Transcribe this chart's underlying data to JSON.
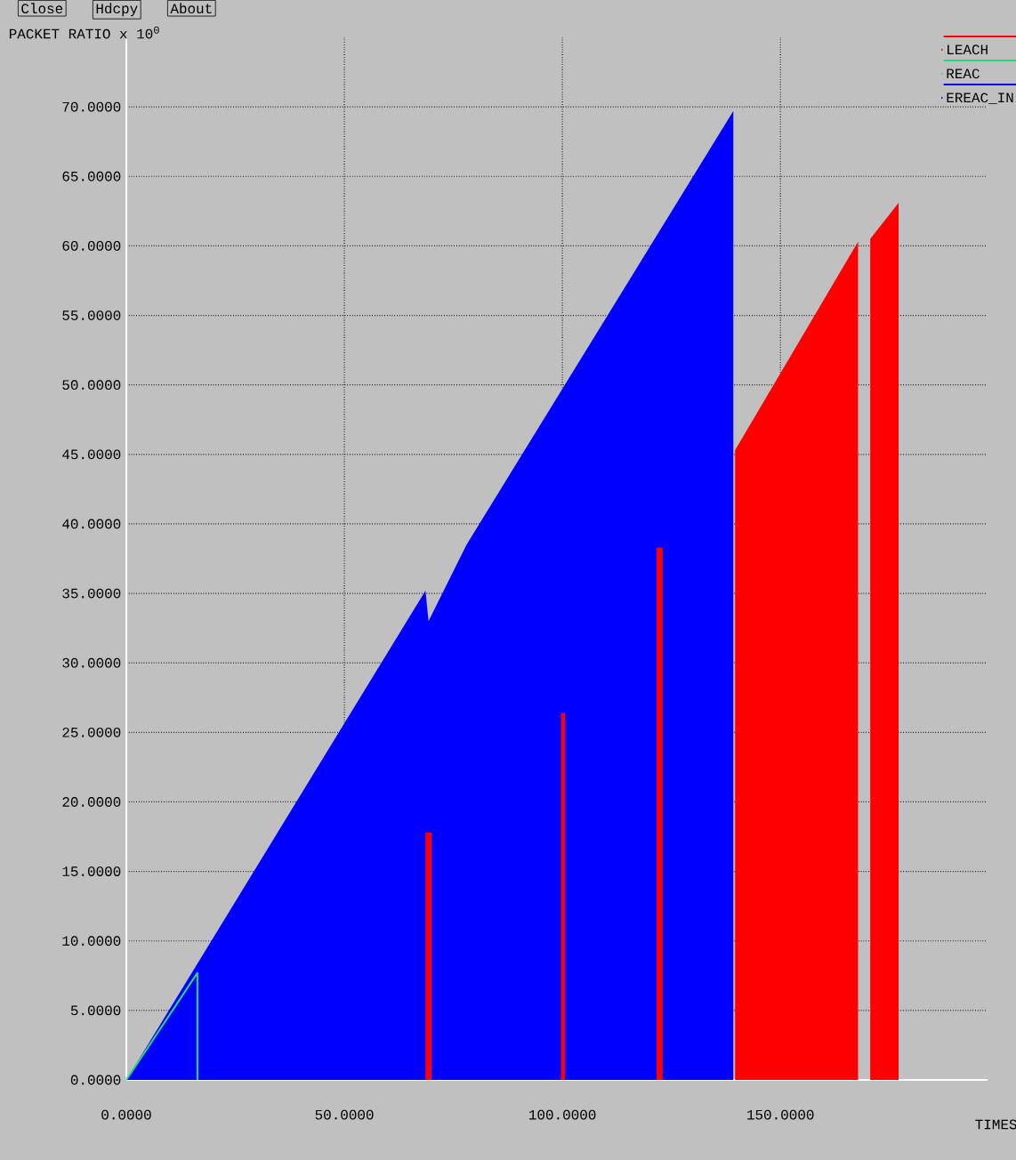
{
  "chart_data": {
    "type": "area",
    "ylabel": "PACKET RATIO x 10$^{0}$",
    "xlabel": "TIMES",
    "annotations": [
      "Close",
      "Hdcpy",
      "About"
    ],
    "xlim": [
      0,
      197.5
    ],
    "ylim": [
      0,
      75
    ],
    "xticks": [
      {
        "value": 0,
        "label": "0.0000"
      },
      {
        "value": 50,
        "label": "50.0000"
      },
      {
        "value": 100,
        "label": "100.0000"
      },
      {
        "value": 150,
        "label": "150.0000"
      }
    ],
    "yticks": [
      {
        "value": 0,
        "label": "0.0000"
      },
      {
        "value": 5,
        "label": "5.0000"
      },
      {
        "value": 10,
        "label": "10.0000"
      },
      {
        "value": 15,
        "label": "15.0000"
      },
      {
        "value": 20,
        "label": "20.0000"
      },
      {
        "value": 25,
        "label": "25.0000"
      },
      {
        "value": 30,
        "label": "30.0000"
      },
      {
        "value": 35,
        "label": "35.0000"
      },
      {
        "value": 40,
        "label": "40.0000"
      },
      {
        "value": 45,
        "label": "45.0000"
      },
      {
        "value": 50,
        "label": "50.0000"
      },
      {
        "value": 55,
        "label": "55.0000"
      },
      {
        "value": 60,
        "label": "60.0000"
      },
      {
        "value": 65,
        "label": "65.0000"
      },
      {
        "value": 70,
        "label": "70.0000"
      }
    ],
    "grid": true,
    "legend": "top right",
    "series": [
      {
        "name": "LEACH",
        "color": "#ff0000",
        "x": [
          68.6,
          68.6,
          70,
          70,
          99.7,
          99.7,
          100.6,
          100.6,
          121.6,
          121.6,
          123,
          123,
          139.6,
          139.6,
          167.8,
          167.8,
          170.6,
          170.6,
          177.1,
          177.1
        ],
        "values": [
          0,
          17.8,
          17.8,
          0,
          0,
          26.4,
          26.4,
          0,
          0,
          38.3,
          38.3,
          0,
          0,
          45.3,
          60.3,
          0,
          0,
          60.5,
          63.1,
          0
        ]
      },
      {
        "name": "REAC",
        "type": "line",
        "color": "#22dd77",
        "x": [
          0,
          16.3,
          16.3
        ],
        "values": [
          0,
          7.7,
          0
        ]
      },
      {
        "name": "EREAC_IN",
        "color": "#0000ff",
        "x": [
          0,
          68.6,
          69.3,
          78,
          139.2,
          139.2
        ],
        "values": [
          0,
          35.2,
          33,
          38.5,
          69.7,
          0
        ]
      }
    ]
  }
}
